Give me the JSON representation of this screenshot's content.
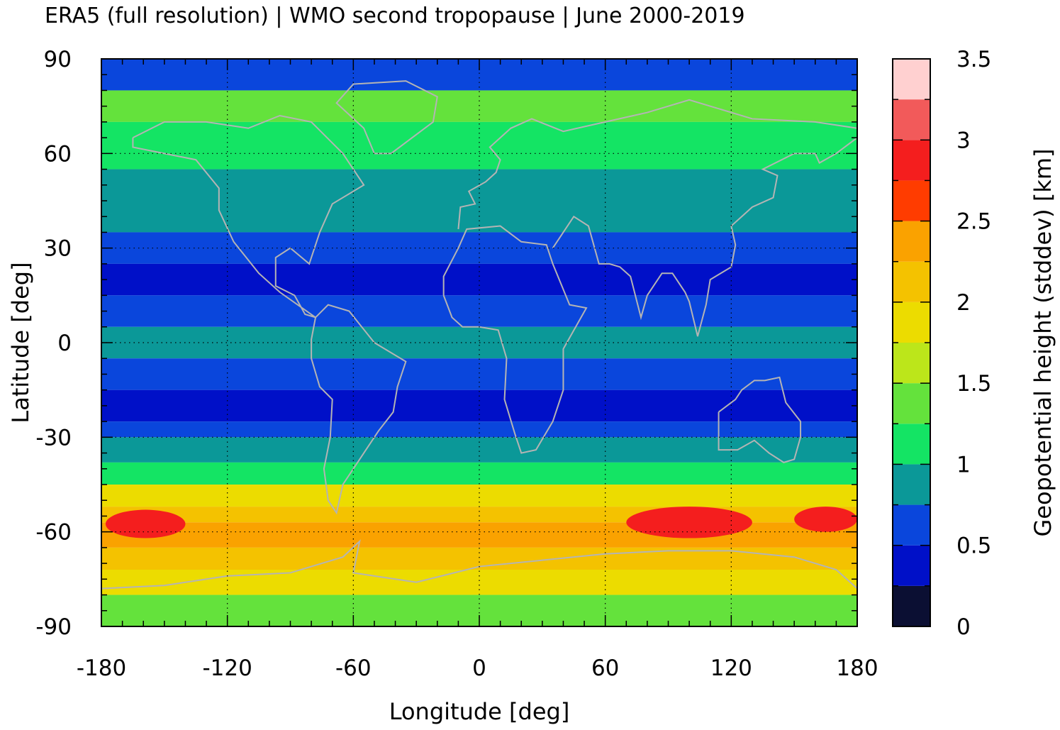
{
  "chart_data": {
    "type": "heatmap",
    "title": "ERA5 (full resolution) | WMO second tropopause | June 2000-2019",
    "xlabel": "Longitude [deg]",
    "ylabel": "Latitude [deg]",
    "xlim": [
      -180,
      180
    ],
    "ylim": [
      -90,
      90
    ],
    "x_ticks": [
      "-180",
      "-120",
      "-60",
      "0",
      "60",
      "120",
      "180"
    ],
    "y_ticks": [
      "90",
      "60",
      "30",
      "0",
      "-30",
      "-60",
      "-90"
    ],
    "grid": true,
    "colorbar": {
      "label": "Geopotential height (stddev) [km]",
      "range": [
        0,
        3.5
      ],
      "tick_labels": [
        "0",
        "0.5",
        "1",
        "1.5",
        "2",
        "2.5",
        "3",
        "3.5"
      ],
      "bins": [
        {
          "min": 0.0,
          "max": 0.25,
          "color": "#0b0f33"
        },
        {
          "min": 0.25,
          "max": 0.5,
          "color": "#0010c8"
        },
        {
          "min": 0.5,
          "max": 0.75,
          "color": "#0a46dc"
        },
        {
          "min": 0.75,
          "max": 1.0,
          "color": "#0b9898"
        },
        {
          "min": 1.0,
          "max": 1.25,
          "color": "#14e464"
        },
        {
          "min": 1.25,
          "max": 1.5,
          "color": "#64e23c"
        },
        {
          "min": 1.5,
          "max": 1.75,
          "color": "#bce61a"
        },
        {
          "min": 1.75,
          "max": 2.0,
          "color": "#ecdc00"
        },
        {
          "min": 2.0,
          "max": 2.25,
          "color": "#f4c200"
        },
        {
          "min": 2.25,
          "max": 2.5,
          "color": "#faa200"
        },
        {
          "min": 2.5,
          "max": 2.75,
          "color": "#ff3c00"
        },
        {
          "min": 2.75,
          "max": 3.0,
          "color": "#f41e1e"
        },
        {
          "min": 3.0,
          "max": 3.25,
          "color": "#f25a5a"
        },
        {
          "min": 3.25,
          "max": 3.5,
          "color": "#ffd0d0"
        }
      ]
    },
    "latitude_bands": [
      {
        "lat": [
          80,
          90
        ],
        "value": 0.6
      },
      {
        "lat": [
          70,
          80
        ],
        "value": 1.3
      },
      {
        "lat": [
          55,
          70
        ],
        "value": 1.1
      },
      {
        "lat": [
          45,
          55
        ],
        "value": 0.9
      },
      {
        "lat": [
          35,
          45
        ],
        "value": 0.8
      },
      {
        "lat": [
          25,
          35
        ],
        "value": 0.6
      },
      {
        "lat": [
          15,
          25
        ],
        "value": 0.4
      },
      {
        "lat": [
          5,
          15
        ],
        "value": 0.6
      },
      {
        "lat": [
          -5,
          5
        ],
        "value": 0.9
      },
      {
        "lat": [
          -15,
          -5
        ],
        "value": 0.6
      },
      {
        "lat": [
          -25,
          -15
        ],
        "value": 0.4
      },
      {
        "lat": [
          -30,
          -25
        ],
        "value": 0.6
      },
      {
        "lat": [
          -38,
          -30
        ],
        "value": 0.9
      },
      {
        "lat": [
          -45,
          -38
        ],
        "value": 1.2
      },
      {
        "lat": [
          -52,
          -45
        ],
        "value": 1.8
      },
      {
        "lat": [
          -57,
          -52
        ],
        "value": 2.2
      },
      {
        "lat": [
          -65,
          -57
        ],
        "value": 2.4
      },
      {
        "lat": [
          -72,
          -65
        ],
        "value": 2.0
      },
      {
        "lat": [
          -80,
          -72
        ],
        "value": 1.8
      },
      {
        "lat": [
          -90,
          -80
        ],
        "value": 1.4
      }
    ],
    "max_regions": [
      {
        "lon": [
          -178,
          -140
        ],
        "lat": [
          -62,
          -53
        ],
        "value": 2.9
      },
      {
        "lon": [
          70,
          130
        ],
        "lat": [
          -62,
          -52
        ],
        "value": 2.9
      },
      {
        "lon": [
          150,
          180
        ],
        "lat": [
          -60,
          -52
        ],
        "value": 2.8
      }
    ],
    "overlay": "gray coastlines"
  }
}
